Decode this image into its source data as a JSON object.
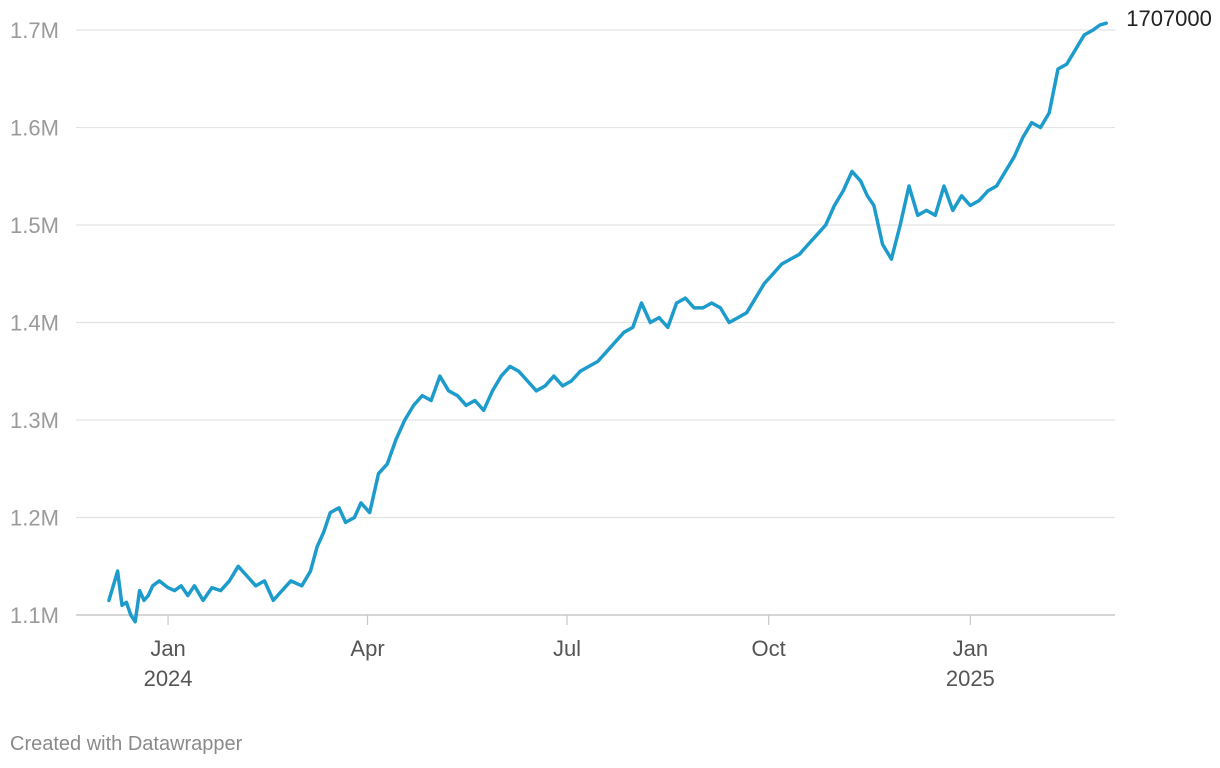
{
  "chart_data": {
    "type": "line",
    "ylim": [
      1100000,
      1700000
    ],
    "y_ticks": [
      {
        "value": 1100000,
        "label": "1.1M"
      },
      {
        "value": 1200000,
        "label": "1.2M"
      },
      {
        "value": 1300000,
        "label": "1.3M"
      },
      {
        "value": 1400000,
        "label": "1.4M"
      },
      {
        "value": 1500000,
        "label": "1.5M"
      },
      {
        "value": 1600000,
        "label": "1.6M"
      },
      {
        "value": 1700000,
        "label": "1.7M"
      }
    ],
    "x_range": [
      "2023-11-20",
      "2025-03-08"
    ],
    "x_ticks": [
      {
        "date": "2024-01-01",
        "label": "Jan",
        "sublabel": "2024"
      },
      {
        "date": "2024-04-01",
        "label": "Apr",
        "sublabel": ""
      },
      {
        "date": "2024-07-01",
        "label": "Jul",
        "sublabel": ""
      },
      {
        "date": "2024-10-01",
        "label": "Oct",
        "sublabel": ""
      },
      {
        "date": "2025-01-01",
        "label": "Jan",
        "sublabel": "2025"
      }
    ],
    "grid": true,
    "line_color": "#1d9ccc",
    "end_label": "1707000",
    "series": [
      {
        "x": [
          "2023-12-05",
          "2023-12-07",
          "2023-12-09",
          "2023-12-11",
          "2023-12-13",
          "2023-12-15",
          "2023-12-17",
          "2023-12-19",
          "2023-12-21",
          "2023-12-23",
          "2023-12-25",
          "2023-12-28",
          "2024-01-01",
          "2024-01-04",
          "2024-01-07",
          "2024-01-10",
          "2024-01-13",
          "2024-01-17",
          "2024-01-21",
          "2024-01-25",
          "2024-01-29",
          "2024-02-02",
          "2024-02-06",
          "2024-02-10",
          "2024-02-14",
          "2024-02-18",
          "2024-02-22",
          "2024-02-26",
          "2024-03-02",
          "2024-03-06",
          "2024-03-09",
          "2024-03-12",
          "2024-03-15",
          "2024-03-19",
          "2024-03-22",
          "2024-03-26",
          "2024-03-29",
          "2024-04-02",
          "2024-04-06",
          "2024-04-10",
          "2024-04-14",
          "2024-04-18",
          "2024-04-22",
          "2024-04-26",
          "2024-04-30",
          "2024-05-04",
          "2024-05-08",
          "2024-05-12",
          "2024-05-16",
          "2024-05-20",
          "2024-05-24",
          "2024-05-28",
          "2024-06-01",
          "2024-06-05",
          "2024-06-09",
          "2024-06-13",
          "2024-06-17",
          "2024-06-21",
          "2024-06-25",
          "2024-06-29",
          "2024-07-03",
          "2024-07-07",
          "2024-07-11",
          "2024-07-15",
          "2024-07-19",
          "2024-07-23",
          "2024-07-27",
          "2024-07-31",
          "2024-08-04",
          "2024-08-08",
          "2024-08-12",
          "2024-08-16",
          "2024-08-20",
          "2024-08-24",
          "2024-08-28",
          "2024-09-01",
          "2024-09-05",
          "2024-09-09",
          "2024-09-13",
          "2024-09-17",
          "2024-09-21",
          "2024-09-25",
          "2024-09-29",
          "2024-10-03",
          "2024-10-07",
          "2024-10-11",
          "2024-10-15",
          "2024-10-19",
          "2024-10-23",
          "2024-10-27",
          "2024-10-31",
          "2024-11-04",
          "2024-11-08",
          "2024-11-12",
          "2024-11-15",
          "2024-11-18",
          "2024-11-22",
          "2024-11-26",
          "2024-11-30",
          "2024-12-04",
          "2024-12-08",
          "2024-12-12",
          "2024-12-16",
          "2024-12-20",
          "2024-12-24",
          "2024-12-28",
          "2025-01-01",
          "2025-01-05",
          "2025-01-09",
          "2025-01-13",
          "2025-01-17",
          "2025-01-21",
          "2025-01-25",
          "2025-01-29",
          "2025-02-02",
          "2025-02-06",
          "2025-02-10",
          "2025-02-14",
          "2025-02-18",
          "2025-02-22",
          "2025-02-26",
          "2025-03-01",
          "2025-03-04"
        ],
        "values": [
          1115000,
          1130000,
          1145000,
          1110000,
          1113000,
          1100000,
          1093000,
          1125000,
          1115000,
          1120000,
          1130000,
          1135000,
          1128000,
          1125000,
          1130000,
          1120000,
          1130000,
          1115000,
          1128000,
          1125000,
          1135000,
          1150000,
          1140000,
          1130000,
          1135000,
          1115000,
          1125000,
          1135000,
          1130000,
          1145000,
          1170000,
          1185000,
          1205000,
          1210000,
          1195000,
          1200000,
          1215000,
          1205000,
          1245000,
          1255000,
          1280000,
          1300000,
          1315000,
          1325000,
          1320000,
          1345000,
          1330000,
          1325000,
          1315000,
          1320000,
          1310000,
          1330000,
          1345000,
          1355000,
          1350000,
          1340000,
          1330000,
          1335000,
          1345000,
          1335000,
          1340000,
          1350000,
          1355000,
          1360000,
          1370000,
          1380000,
          1390000,
          1395000,
          1420000,
          1400000,
          1405000,
          1395000,
          1420000,
          1425000,
          1415000,
          1415000,
          1420000,
          1415000,
          1400000,
          1405000,
          1410000,
          1425000,
          1440000,
          1450000,
          1460000,
          1465000,
          1470000,
          1480000,
          1490000,
          1500000,
          1520000,
          1535000,
          1555000,
          1545000,
          1530000,
          1520000,
          1480000,
          1465000,
          1500000,
          1540000,
          1510000,
          1515000,
          1510000,
          1540000,
          1515000,
          1530000,
          1520000,
          1525000,
          1535000,
          1540000,
          1555000,
          1570000,
          1590000,
          1605000,
          1600000,
          1615000,
          1660000,
          1665000,
          1680000,
          1695000,
          1700000,
          1705000,
          1707000
        ]
      }
    ]
  },
  "footer": {
    "credit": "Created with Datawrapper"
  }
}
